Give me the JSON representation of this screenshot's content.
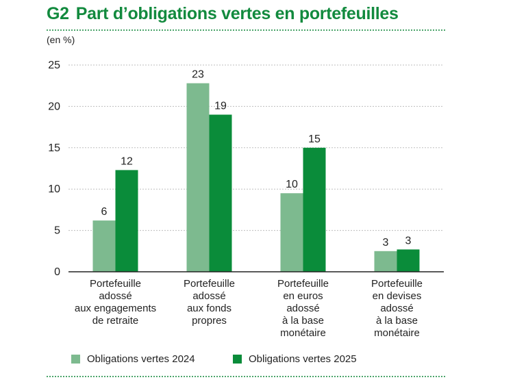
{
  "header": {
    "code": "G2",
    "title": "Part d’obligations vertes en portefeuilles"
  },
  "unit": "(en %)",
  "colors": {
    "series_2024": "#7dba8f",
    "series_2025": "#0a8c3a",
    "grid": "#bdbdbd",
    "title": "#128a3e"
  },
  "chart_data": {
    "type": "bar",
    "title": "Part d’obligations vertes en portefeuilles",
    "ylabel": "(en %)",
    "ylim": [
      0,
      25
    ],
    "yticks": [
      0,
      5,
      10,
      15,
      20,
      25
    ],
    "grid": true,
    "legend_position": "bottom",
    "categories": [
      [
        "Portefeuille",
        "adossé",
        "aux engagements",
        "de retraite"
      ],
      [
        "Portefeuille",
        "adossé",
        "aux fonds",
        "propres"
      ],
      [
        "Portefeuille",
        "en euros",
        "adossé",
        "à la base",
        "monétaire"
      ],
      [
        "Portefeuille",
        "en devises",
        "adossé",
        "à la base",
        "monétaire"
      ]
    ],
    "series": [
      {
        "name": "Obligations vertes 2024",
        "values": [
          6.2,
          22.8,
          9.5,
          2.5
        ],
        "labels": [
          "6",
          "23",
          "10",
          "3"
        ]
      },
      {
        "name": "Obligations vertes 2025",
        "values": [
          12.3,
          19.0,
          15.0,
          2.7
        ],
        "labels": [
          "12",
          "19",
          "15",
          "3"
        ]
      }
    ]
  }
}
